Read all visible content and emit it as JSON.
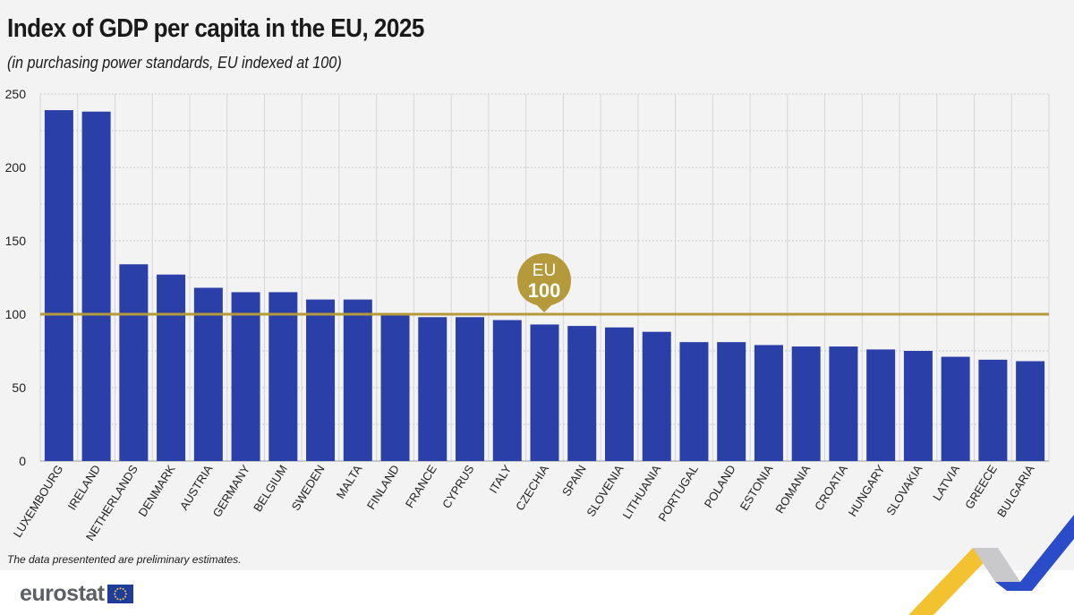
{
  "header": {
    "title": "Index of GDP per capita in the EU, 2025",
    "subtitle": "(in purchasing power standards, EU indexed at 100)"
  },
  "footnote": "The data presentented are preliminary estimates.",
  "logo": {
    "text": "eurostat",
    "icon": "eu-flag-icon"
  },
  "colors": {
    "bar": "#2b3fa8",
    "reference_line": "#b49a3a",
    "background": "#f3f3f4",
    "grid": "#c8c8c8"
  },
  "chart_data": {
    "type": "bar",
    "title": "Index of GDP per capita in the EU, 2025",
    "subtitle": "(in purchasing power standards, EU indexed at 100)",
    "categories": [
      "LUXEMBOURG",
      "IRELAND",
      "NETHERLANDS",
      "DENMARK",
      "AUSTRIA",
      "GERMANY",
      "BELGIUM",
      "SWEDEN",
      "MALTA",
      "FINLAND",
      "FRANCE",
      "CYPRUS",
      "ITALY",
      "CZECHIA",
      "SPAIN",
      "SLOVENIA",
      "LITHUANIA",
      "PORTUGAL",
      "POLAND",
      "ESTONIA",
      "ROMANIA",
      "CROATIA",
      "HUNGARY",
      "SLOVAKIA",
      "LATVIA",
      "GREECE",
      "BULGARIA"
    ],
    "values": [
      239,
      238,
      134,
      127,
      118,
      115,
      115,
      110,
      110,
      100,
      98,
      98,
      96,
      93,
      92,
      91,
      88,
      81,
      81,
      79,
      78,
      78,
      76,
      75,
      71,
      69,
      68
    ],
    "ylim": [
      0,
      250
    ],
    "yticks": [
      0,
      50,
      100,
      150,
      200,
      250
    ],
    "xlabel": "",
    "ylabel": "",
    "grid": true,
    "reference_line": {
      "value": 100,
      "label_line1": "EU",
      "label_line2": "100"
    }
  }
}
